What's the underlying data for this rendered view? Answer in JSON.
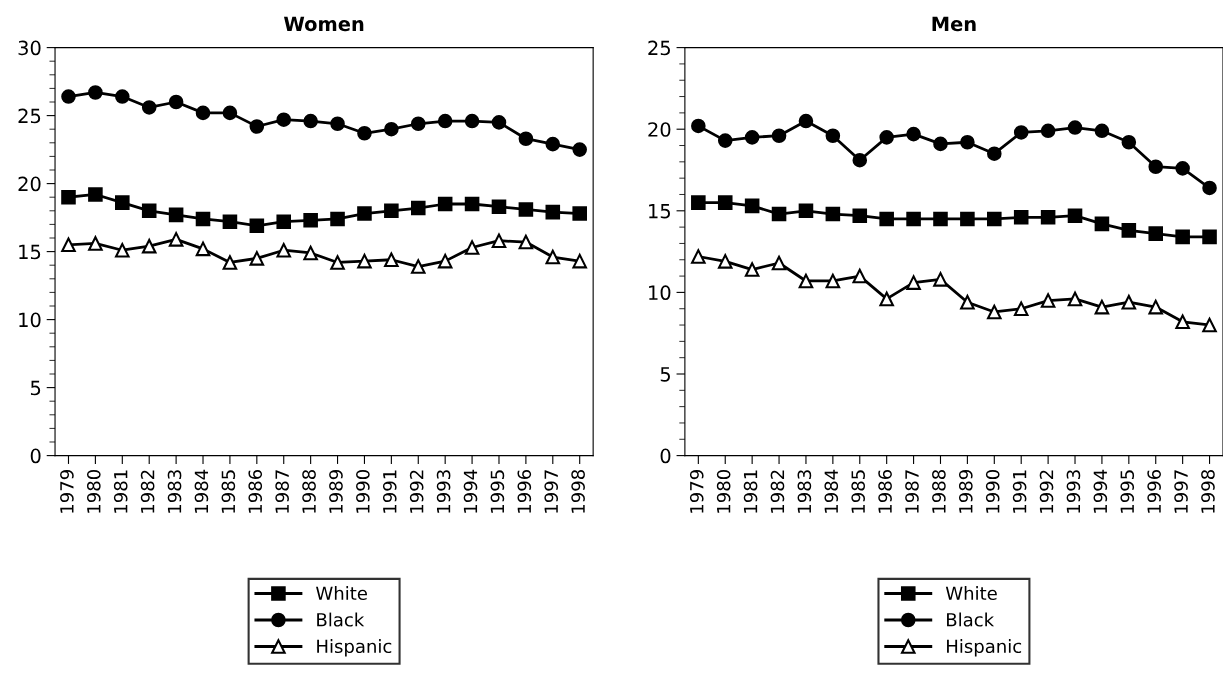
{
  "chart_data": [
    {
      "type": "line",
      "title": "Women",
      "categories": [
        "1979",
        "1980",
        "1981",
        "1982",
        "1983",
        "1984",
        "1985",
        "1986",
        "1987",
        "1988",
        "1989",
        "1990",
        "1991",
        "1992",
        "1993",
        "1994",
        "1995",
        "1996",
        "1997",
        "1998"
      ],
      "ylim": [
        0,
        30
      ],
      "yticks": [
        0,
        5,
        10,
        15,
        20,
        25,
        30
      ],
      "grid": false,
      "legend": "bottom",
      "series": [
        {
          "name": "White",
          "color": "#000000",
          "marker": "square",
          "values": [
            19.0,
            19.2,
            18.6,
            18.0,
            17.7,
            17.4,
            17.2,
            16.9,
            17.2,
            17.3,
            17.4,
            17.8,
            18.0,
            18.2,
            18.5,
            18.5,
            18.3,
            18.1,
            17.9,
            17.8
          ]
        },
        {
          "name": "Black",
          "color": "#000000",
          "marker": "circle",
          "values": [
            26.4,
            26.7,
            26.4,
            25.6,
            26.0,
            25.2,
            25.2,
            24.2,
            24.7,
            24.6,
            24.4,
            23.7,
            24.0,
            24.4,
            24.6,
            24.6,
            24.5,
            23.3,
            22.9,
            22.5
          ]
        },
        {
          "name": "Hispanic",
          "color": "#000000",
          "marker": "triangle",
          "values": [
            15.5,
            15.6,
            15.1,
            15.4,
            15.9,
            15.2,
            14.2,
            14.5,
            15.1,
            14.9,
            14.2,
            14.3,
            14.4,
            13.9,
            14.3,
            15.3,
            15.8,
            15.7,
            14.6,
            14.3
          ]
        }
      ]
    },
    {
      "type": "line",
      "title": "Men",
      "categories": [
        "1979",
        "1980",
        "1981",
        "1982",
        "1983",
        "1984",
        "1985",
        "1986",
        "1987",
        "1988",
        "1989",
        "1990",
        "1991",
        "1992",
        "1993",
        "1994",
        "1995",
        "1996",
        "1997",
        "1998"
      ],
      "ylim": [
        0,
        25
      ],
      "yticks": [
        0,
        5,
        10,
        15,
        20,
        25
      ],
      "grid": false,
      "legend": "bottom",
      "series": [
        {
          "name": "White",
          "color": "#000000",
          "marker": "square",
          "values": [
            15.5,
            15.5,
            15.3,
            14.8,
            15.0,
            14.8,
            14.7,
            14.5,
            14.5,
            14.5,
            14.5,
            14.5,
            14.6,
            14.6,
            14.7,
            14.2,
            13.8,
            13.6,
            13.4,
            13.4
          ]
        },
        {
          "name": "Black",
          "color": "#000000",
          "marker": "circle",
          "values": [
            20.2,
            19.3,
            19.5,
            19.6,
            20.5,
            19.6,
            18.1,
            19.5,
            19.7,
            19.1,
            19.2,
            18.5,
            19.8,
            19.9,
            20.1,
            19.9,
            19.2,
            17.7,
            17.6,
            16.4
          ]
        },
        {
          "name": "Hispanic",
          "color": "#000000",
          "marker": "triangle",
          "values": [
            12.2,
            11.9,
            11.4,
            11.8,
            10.7,
            10.7,
            11.0,
            9.6,
            10.6,
            10.8,
            9.4,
            8.8,
            9.0,
            9.5,
            9.6,
            9.1,
            9.4,
            9.1,
            8.2,
            8.0
          ]
        }
      ]
    }
  ]
}
